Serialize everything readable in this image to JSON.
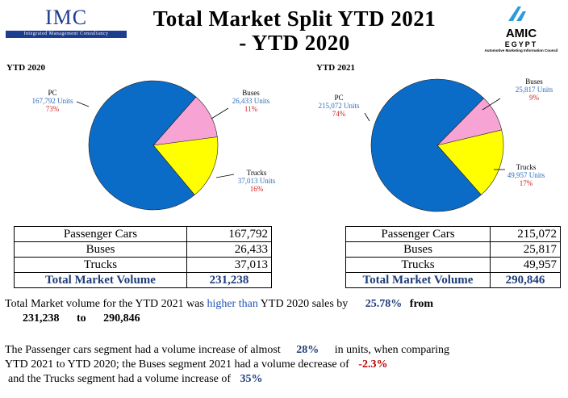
{
  "header": {
    "title_line1": "Total Market Split YTD 2021",
    "title_line2": "- YTD 2020"
  },
  "logos": {
    "imc_name": "IMC",
    "imc_full": "Integrated Management Consultancy",
    "amic_mark": "AMIC",
    "amic_country": "EGYPT",
    "amic_sub": "Automotive Marketing Information Council"
  },
  "chart_data": [
    {
      "type": "pie",
      "title": "YTD 2020",
      "series": [
        {
          "name": "PC",
          "value": 167792,
          "value_label": "167,792 Units",
          "percent_label": "73%",
          "color": "#0b6cc7"
        },
        {
          "name": "Buses",
          "value": 26433,
          "value_label": "26,433 Units",
          "percent_label": "11%",
          "color": "#f7a3d3"
        },
        {
          "name": "Trucks",
          "value": 37013,
          "value_label": "37,013 Units",
          "percent_label": "16%",
          "color": "#ffff00"
        }
      ]
    },
    {
      "type": "pie",
      "title": "YTD 2021",
      "series": [
        {
          "name": "PC",
          "value": 215072,
          "value_label": "215,072 Units",
          "percent_label": "74%",
          "color": "#0b6cc7"
        },
        {
          "name": "Buses",
          "value": 25817,
          "value_label": "25,817 Units",
          "percent_label": "9%",
          "color": "#f7a3d3"
        },
        {
          "name": "Trucks",
          "value": 49957,
          "value_label": "49,957 Units",
          "percent_label": "17%",
          "color": "#ffff00"
        }
      ]
    }
  ],
  "table_2020": {
    "rows": [
      {
        "label": "Passenger Cars",
        "value": "167,792"
      },
      {
        "label": "Buses",
        "value": "26,433"
      },
      {
        "label": "Trucks",
        "value": "37,013"
      }
    ],
    "total_label": "Total Market Volume",
    "total_value": "231,238"
  },
  "table_2021": {
    "rows": [
      {
        "label": "Passenger Cars",
        "value": "215,072"
      },
      {
        "label": "Buses",
        "value": "25,817"
      },
      {
        "label": "Trucks",
        "value": "49,957"
      }
    ],
    "total_label": "Total Market Volume",
    "total_value": "290,846"
  },
  "summary": {
    "p1_a": "Total Market volume for the YTD 2021 was ",
    "p1_highlight": "higher than",
    "p1_b": " YTD 2020 sales by",
    "p1_pct": "25.78%",
    "p1_from": "from",
    "p1_val1": "231,238",
    "p1_to": "to",
    "p1_val2": "290,846",
    "p2_a": "The Passenger cars segment had a volume increase of almost",
    "p2_pct": "28%",
    "p2_b": "in units, when comparing",
    "p2_c": "YTD 2021 to YTD 2020; the Buses segment 2021  had a volume decrease of",
    "p2_pct2": "-2.3%",
    "p2_d": "and the Trucks segment had a volume increase of",
    "p2_pct3": "35%"
  }
}
